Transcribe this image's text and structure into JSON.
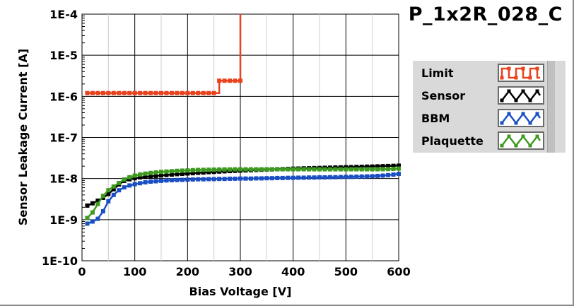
{
  "chart_data": {
    "type": "line",
    "title": "P_1x2R_028_C",
    "xlabel": "Bias Voltage [V]",
    "ylabel": "Sensor Leakage Current [A]",
    "xlim": [
      0,
      600
    ],
    "ylim": [
      1e-10,
      0.0001
    ],
    "yscale": "log",
    "grid": true,
    "legend_position": "right",
    "x_ticks": [
      0,
      100,
      200,
      300,
      400,
      500,
      600
    ],
    "x_tick_labels": [
      "0",
      "100",
      "200",
      "300",
      "400",
      "500",
      "600"
    ],
    "y_ticks": [
      1e-10,
      1e-09,
      1e-08,
      1e-07,
      1e-06,
      1e-05,
      0.0001
    ],
    "y_tick_labels": [
      "1E-10",
      "1E-9",
      "1E-8",
      "1E-7",
      "1E-6",
      "1E-5",
      "1E-4"
    ],
    "series": [
      {
        "name": "Limit",
        "color": "#e8431e",
        "step": true,
        "x": [
          10,
          20,
          30,
          40,
          50,
          60,
          70,
          80,
          90,
          100,
          110,
          120,
          130,
          140,
          150,
          160,
          170,
          180,
          190,
          200,
          210,
          220,
          230,
          240,
          250,
          260,
          270,
          280,
          290,
          300,
          300
        ],
        "y": [
          1.2e-06,
          1.2e-06,
          1.2e-06,
          1.2e-06,
          1.2e-06,
          1.2e-06,
          1.2e-06,
          1.2e-06,
          1.2e-06,
          1.2e-06,
          1.2e-06,
          1.2e-06,
          1.2e-06,
          1.2e-06,
          1.2e-06,
          1.2e-06,
          1.2e-06,
          1.2e-06,
          1.2e-06,
          1.2e-06,
          1.2e-06,
          1.2e-06,
          1.2e-06,
          1.2e-06,
          1.2e-06,
          2.4e-06,
          2.4e-06,
          2.4e-06,
          2.4e-06,
          2.4e-06,
          0.0001
        ]
      },
      {
        "name": "Sensor",
        "color": "#000000",
        "step": false,
        "x": [
          10,
          20,
          30,
          40,
          50,
          60,
          70,
          80,
          90,
          100,
          110,
          120,
          130,
          140,
          150,
          160,
          170,
          180,
          190,
          200,
          210,
          220,
          230,
          240,
          250,
          260,
          270,
          280,
          290,
          300,
          310,
          320,
          330,
          340,
          350,
          360,
          370,
          380,
          390,
          400,
          410,
          420,
          430,
          440,
          450,
          460,
          470,
          480,
          490,
          500,
          510,
          520,
          530,
          540,
          550,
          560,
          570,
          580,
          590,
          600
        ],
        "y": [
          2.2e-09,
          2.5e-09,
          2.9e-09,
          3.4e-09,
          4.2e-09,
          5.5e-09,
          7.2e-09,
          8.8e-09,
          9.6e-09,
          1.02e-08,
          1.07e-08,
          1.1e-08,
          1.13e-08,
          1.16e-08,
          1.19e-08,
          1.22e-08,
          1.25e-08,
          1.28e-08,
          1.3e-08,
          1.33e-08,
          1.35e-08,
          1.38e-08,
          1.4e-08,
          1.43e-08,
          1.45e-08,
          1.48e-08,
          1.5e-08,
          1.52e-08,
          1.54e-08,
          1.56e-08,
          1.58e-08,
          1.6e-08,
          1.62e-08,
          1.64e-08,
          1.66e-08,
          1.67e-08,
          1.69e-08,
          1.7e-08,
          1.72e-08,
          1.74e-08,
          1.75e-08,
          1.77e-08,
          1.78e-08,
          1.8e-08,
          1.81e-08,
          1.83e-08,
          1.84e-08,
          1.86e-08,
          1.87e-08,
          1.89e-08,
          1.9e-08,
          1.92e-08,
          1.93e-08,
          1.95e-08,
          1.96e-08,
          1.98e-08,
          2e-08,
          2.02e-08,
          2.04e-08,
          2.06e-08
        ]
      },
      {
        "name": "BBM",
        "color": "#1a4fc4",
        "step": false,
        "x": [
          10,
          20,
          30,
          40,
          50,
          60,
          70,
          80,
          90,
          100,
          110,
          120,
          130,
          140,
          150,
          160,
          170,
          180,
          190,
          200,
          210,
          220,
          230,
          240,
          250,
          260,
          270,
          280,
          290,
          300,
          310,
          320,
          330,
          340,
          350,
          360,
          370,
          380,
          390,
          400,
          410,
          420,
          430,
          440,
          450,
          460,
          470,
          480,
          490,
          500,
          510,
          520,
          530,
          540,
          550,
          560,
          570,
          580,
          590,
          600
        ],
        "y": [
          8e-10,
          9e-10,
          1.05e-09,
          1.6e-09,
          2.8e-09,
          4e-09,
          5.2e-09,
          6.1e-09,
          6.8e-09,
          7.3e-09,
          7.7e-09,
          8.1e-09,
          8.4e-09,
          8.6e-09,
          8.8e-09,
          9e-09,
          9.1e-09,
          9.2e-09,
          9.3e-09,
          9.4e-09,
          9.5e-09,
          9.6e-09,
          9.6e-09,
          9.7e-09,
          9.7e-09,
          9.8e-09,
          9.8e-09,
          9.9e-09,
          9.9e-09,
          1e-08,
          1e-08,
          1e-08,
          1.01e-08,
          1.01e-08,
          1.02e-08,
          1.02e-08,
          1.03e-08,
          1.03e-08,
          1.04e-08,
          1.04e-08,
          1.05e-08,
          1.05e-08,
          1.06e-08,
          1.06e-08,
          1.07e-08,
          1.07e-08,
          1.08e-08,
          1.08e-08,
          1.09e-08,
          1.1e-08,
          1.1e-08,
          1.11e-08,
          1.12e-08,
          1.13e-08,
          1.14e-08,
          1.16e-08,
          1.18e-08,
          1.21e-08,
          1.25e-08,
          1.3e-08
        ]
      },
      {
        "name": "Plaquette",
        "color": "#3d9a1f",
        "step": false,
        "x": [
          10,
          20,
          30,
          40,
          50,
          60,
          70,
          80,
          90,
          100,
          110,
          120,
          130,
          140,
          150,
          160,
          170,
          180,
          190,
          200,
          210,
          220,
          230,
          240,
          250,
          260,
          270,
          280,
          290,
          300,
          310,
          320,
          330,
          340,
          350,
          360,
          370,
          380,
          390,
          400,
          410,
          420,
          430,
          440,
          450,
          460,
          470,
          480,
          490,
          500,
          510,
          520,
          530,
          540,
          550,
          560,
          570,
          580,
          590,
          600
        ],
        "y": [
          1.1e-09,
          1.5e-09,
          2.4e-09,
          3.8e-09,
          5.2e-09,
          6.4e-09,
          7.8e-09,
          9.5e-09,
          1.08e-08,
          1.18e-08,
          1.26e-08,
          1.32e-08,
          1.37e-08,
          1.41e-08,
          1.45e-08,
          1.48e-08,
          1.51e-08,
          1.54e-08,
          1.56e-08,
          1.58e-08,
          1.6e-08,
          1.62e-08,
          1.63e-08,
          1.64e-08,
          1.65e-08,
          1.66e-08,
          1.67e-08,
          1.67e-08,
          1.68e-08,
          1.68e-08,
          1.68e-08,
          1.68e-08,
          1.68e-08,
          1.68e-08,
          1.68e-08,
          1.68e-08,
          1.68e-08,
          1.68e-08,
          1.68e-08,
          1.68e-08,
          1.68e-08,
          1.68e-08,
          1.68e-08,
          1.68e-08,
          1.68e-08,
          1.68e-08,
          1.68e-08,
          1.68e-08,
          1.68e-08,
          1.68e-08,
          1.68e-08,
          1.68e-08,
          1.68e-08,
          1.68e-08,
          1.68e-08,
          1.68e-08,
          1.69e-08,
          1.7e-08,
          1.72e-08,
          1.75e-08
        ]
      }
    ]
  }
}
